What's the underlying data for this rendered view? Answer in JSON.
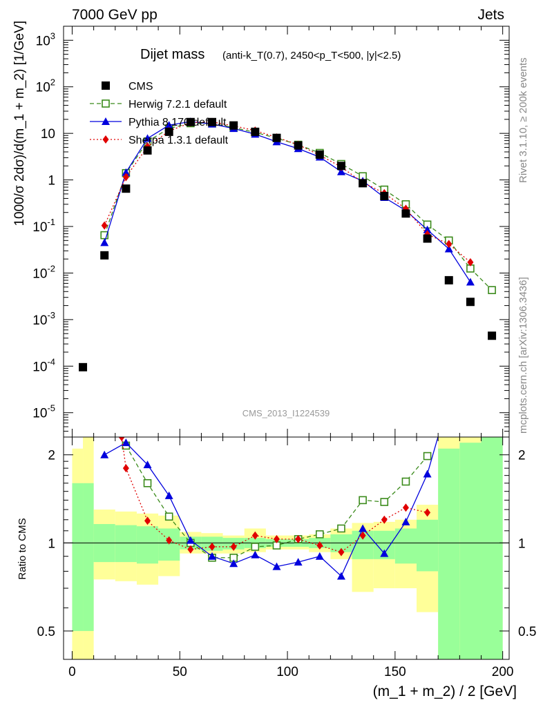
{
  "header": {
    "left": "7000 GeV pp",
    "right": "Jets"
  },
  "side_labels": {
    "rivet": "Rivet 3.1.10, ≥ 200k events",
    "source": "mcplots.cern.ch [arXiv:1306.3436]"
  },
  "chart_data": {
    "type": "scatter",
    "title": "Dijet mass",
    "subtitle": "(anti-k_T(0.7), 2450<p_T<500, |y|<2.5)",
    "watermark": "CMS_2013_I1224539",
    "xlabel": "(m_1 + m_2) / 2 [GeV]",
    "ylabel": "1000/σ 2dσ)/d(m_1 + m_2) [1/GeV]",
    "ratio_ylabel": "Ratio to CMS",
    "xlim": [
      -4,
      203
    ],
    "ylim": [
      3e-06,
      2000
    ],
    "yscale": "log",
    "ratio_ylim": [
      0.4,
      2.3
    ],
    "x_ticks": [
      "0",
      "50",
      "100",
      "150",
      "200"
    ],
    "y_ticks": [
      "10^-5",
      "10^-4",
      "10^-3",
      "10^-2",
      "10^-1",
      "1",
      "10",
      "10^2",
      "10^3"
    ],
    "ratio_ticks": [
      "0.5",
      "1",
      "2"
    ],
    "legend_position": "top-left",
    "data": {
      "name": "CMS",
      "color": "#000000",
      "x": [
        5,
        15,
        25,
        35,
        45,
        55,
        65,
        75,
        85,
        95,
        105,
        115,
        125,
        135,
        145,
        155,
        165,
        175,
        185,
        195
      ],
      "y": [
        9.5e-05,
        0.024,
        0.65,
        4.3,
        10.8,
        17.5,
        17.5,
        14.8,
        10.8,
        8.0,
        5.5,
        3.5,
        2.0,
        0.85,
        0.45,
        0.19,
        0.055,
        0.007,
        0.0024,
        0.00045
      ]
    },
    "series": [
      {
        "name": "Herwig 7.2.1 default",
        "color": "#3a8a1a",
        "marker": "open-square",
        "dash": "6,4",
        "x": [
          15,
          25,
          35,
          45,
          55,
          65,
          75,
          85,
          95,
          105,
          115,
          125,
          135,
          145,
          155,
          165,
          175,
          185,
          195
        ],
        "y": [
          0.065,
          1.4,
          6.7,
          12.8,
          16.5,
          16.3,
          13.3,
          10.5,
          7.9,
          5.7,
          3.8,
          2.2,
          1.2,
          0.62,
          0.3,
          0.11,
          0.05,
          0.0125,
          0.0043
        ],
        "ratio_x": [
          25,
          35,
          45,
          55,
          65,
          75,
          85,
          95,
          105,
          115,
          125,
          135,
          145,
          155,
          165
        ],
        "ratio": [
          2.15,
          1.6,
          1.23,
          1.0,
          0.89,
          0.89,
          0.97,
          0.98,
          1.03,
          1.07,
          1.12,
          1.4,
          1.38,
          1.62,
          1.98
        ]
      },
      {
        "name": "Pythia 8.170 default",
        "color": "#0000dd",
        "marker": "triangle",
        "dash": "",
        "x": [
          15,
          25,
          35,
          45,
          55,
          65,
          75,
          85,
          95,
          105,
          115,
          125,
          135,
          145,
          155,
          165,
          175,
          185
        ],
        "y": [
          0.045,
          1.45,
          7.8,
          15.0,
          17.9,
          15.9,
          12.7,
          9.6,
          6.6,
          4.7,
          3.1,
          1.5,
          0.95,
          0.42,
          0.22,
          0.085,
          0.033,
          0.0064
        ],
        "ratio_x": [
          15,
          25,
          35,
          45,
          55,
          65,
          75,
          85,
          95,
          105,
          115,
          125,
          135,
          145,
          155,
          165,
          172
        ],
        "ratio": [
          2.0,
          2.2,
          1.85,
          1.45,
          1.02,
          0.9,
          0.85,
          0.91,
          0.83,
          0.86,
          0.9,
          0.77,
          1.12,
          0.92,
          1.18,
          1.72,
          2.6
        ]
      },
      {
        "name": "Sherpa 1.3.1 default",
        "color": "#e00000",
        "marker": "diamond",
        "dash": "2,3",
        "x": [
          15,
          25,
          35,
          45,
          55,
          65,
          75,
          85,
          95,
          105,
          115,
          125,
          135,
          145,
          155,
          165,
          175,
          185
        ],
        "y": [
          0.105,
          1.15,
          5.2,
          11.2,
          17.0,
          17.6,
          14.5,
          11.5,
          8.2,
          5.7,
          3.4,
          1.9,
          0.88,
          0.52,
          0.24,
          0.068,
          0.042,
          0.017
        ],
        "ratio_x": [
          23,
          25,
          35,
          45,
          55,
          65,
          75,
          85,
          95,
          105,
          115,
          125,
          135,
          145,
          155,
          165
        ],
        "ratio": [
          2.3,
          1.8,
          1.19,
          1.02,
          0.95,
          0.97,
          0.97,
          1.06,
          1.03,
          1.03,
          0.98,
          0.93,
          1.06,
          1.2,
          1.32,
          1.27
        ]
      }
    ],
    "bands": {
      "green_color": "#99ff99",
      "yellow_color": "#ffff99",
      "bins": [
        {
          "x0": 0,
          "x1": 5,
          "g": [
            0.5,
            1.6
          ],
          "y": [
            0.4,
            2.1
          ]
        },
        {
          "x0": 5,
          "x1": 10,
          "g": [
            0.5,
            1.6
          ],
          "y": [
            0.4,
            2.3
          ]
        },
        {
          "x0": 10,
          "x1": 20,
          "g": [
            0.86,
            1.16
          ],
          "y": [
            0.75,
            1.3
          ]
        },
        {
          "x0": 20,
          "x1": 30,
          "g": [
            0.86,
            1.15
          ],
          "y": [
            0.74,
            1.28
          ]
        },
        {
          "x0": 30,
          "x1": 40,
          "g": [
            0.85,
            1.14
          ],
          "y": [
            0.72,
            1.26
          ]
        },
        {
          "x0": 40,
          "x1": 50,
          "g": [
            0.87,
            1.12
          ],
          "y": [
            0.77,
            1.24
          ]
        },
        {
          "x0": 50,
          "x1": 60,
          "g": [
            0.95,
            1.05
          ],
          "y": [
            0.92,
            1.09
          ]
        },
        {
          "x0": 60,
          "x1": 70,
          "g": [
            0.94,
            1.05
          ],
          "y": [
            0.92,
            1.08
          ]
        },
        {
          "x0": 70,
          "x1": 80,
          "g": [
            0.95,
            1.04
          ],
          "y": [
            0.92,
            1.06
          ]
        },
        {
          "x0": 80,
          "x1": 90,
          "g": [
            0.96,
            1.04
          ],
          "y": [
            0.93,
            1.12
          ]
        },
        {
          "x0": 90,
          "x1": 100,
          "g": [
            0.97,
            1.03
          ],
          "y": [
            0.95,
            1.06
          ]
        },
        {
          "x0": 100,
          "x1": 110,
          "g": [
            0.97,
            1.03
          ],
          "y": [
            0.95,
            1.06
          ]
        },
        {
          "x0": 110,
          "x1": 120,
          "g": [
            0.96,
            1.04
          ],
          "y": [
            0.93,
            1.07
          ]
        },
        {
          "x0": 120,
          "x1": 130,
          "g": [
            0.93,
            1.07
          ],
          "y": [
            0.88,
            1.12
          ]
        },
        {
          "x0": 130,
          "x1": 140,
          "g": [
            0.88,
            1.1
          ],
          "y": [
            0.68,
            1.17
          ]
        },
        {
          "x0": 140,
          "x1": 150,
          "g": [
            0.88,
            1.1
          ],
          "y": [
            0.7,
            1.18
          ]
        },
        {
          "x0": 150,
          "x1": 160,
          "g": [
            0.85,
            1.12
          ],
          "y": [
            0.7,
            1.2
          ]
        },
        {
          "x0": 160,
          "x1": 170,
          "g": [
            0.8,
            1.2
          ],
          "y": [
            0.58,
            1.35
          ]
        },
        {
          "x0": 170,
          "x1": 180,
          "g": [
            0.4,
            2.1
          ],
          "y": [
            0.4,
            2.3
          ]
        },
        {
          "x0": 180,
          "x1": 190,
          "g": [
            0.4,
            2.2
          ],
          "y": [
            0.4,
            2.3
          ]
        },
        {
          "x0": 190,
          "x1": 200,
          "g": [
            0.4,
            2.3
          ],
          "y": [
            0.4,
            2.3
          ]
        }
      ]
    }
  }
}
